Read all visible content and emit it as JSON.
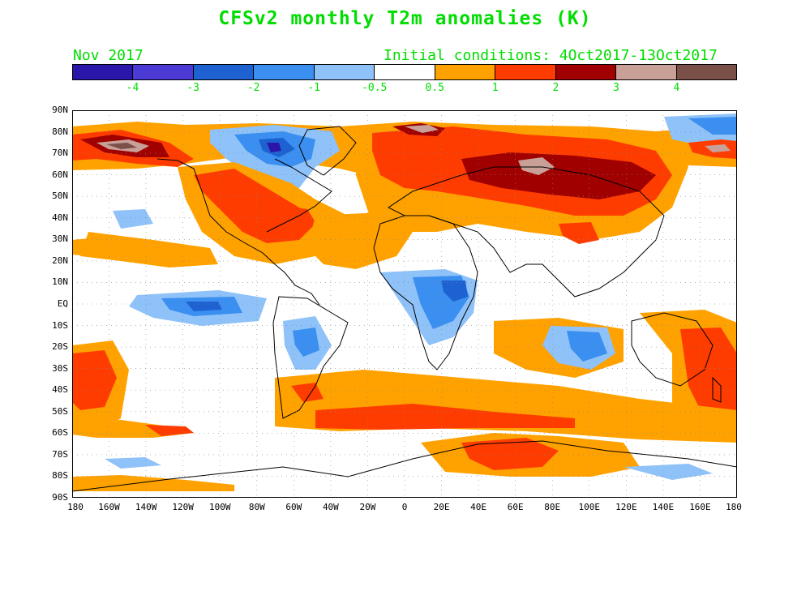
{
  "title": "CFSv2 monthly T2m anomalies (K)",
  "valid_month": "Nov 2017",
  "initial_conditions": "Initial conditions: 4Oct2017-13Oct2017",
  "colorbar": {
    "colors": [
      "#2a16a8",
      "#4b3bd4",
      "#1e62d2",
      "#3a8ff0",
      "#8ec2f8",
      "#ffffff",
      "#ffa200",
      "#ff3c00",
      "#a00000",
      "#c8a098",
      "#7a5048"
    ],
    "labels": [
      "-4",
      "-3",
      "-2",
      "-1",
      "-0.5",
      "0.5",
      "1",
      "2",
      "3",
      "4"
    ]
  },
  "lat_labels": [
    "90N",
    "80N",
    "70N",
    "60N",
    "50N",
    "40N",
    "30N",
    "20N",
    "10N",
    "EQ",
    "10S",
    "20S",
    "30S",
    "40S",
    "50S",
    "60S",
    "70S",
    "80S",
    "90S"
  ],
  "lon_labels": [
    "180",
    "160W",
    "140W",
    "120W",
    "100W",
    "80W",
    "60W",
    "40W",
    "20W",
    "0",
    "20E",
    "40E",
    "60E",
    "80E",
    "100E",
    "120E",
    "140E",
    "160E",
    "180"
  ]
}
